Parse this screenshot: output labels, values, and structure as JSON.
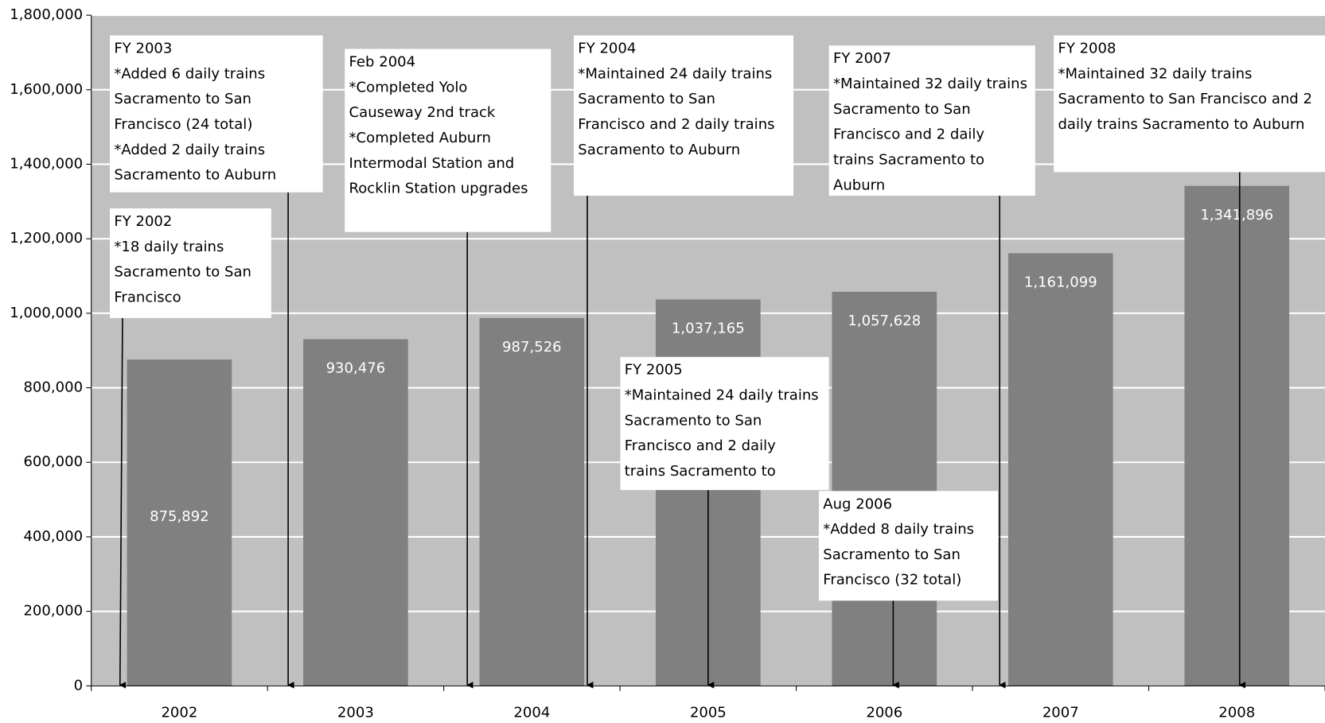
{
  "chart_data": {
    "type": "bar",
    "categories": [
      "2002",
      "2003",
      "2004",
      "2005",
      "2006",
      "2007",
      "2008"
    ],
    "values": [
      875892,
      930476,
      987526,
      1037165,
      1057628,
      1161099,
      1341896
    ],
    "value_labels": [
      "875,892",
      "930,476",
      "987,526",
      "1,037,165",
      "1,057,628",
      "1,161,099",
      "1,341,896"
    ],
    "color": "#808080",
    "background": "#c0c0c0",
    "grid": true,
    "ylim": [
      0,
      1800000
    ],
    "yticks": [
      0,
      {
        "value": 200000,
        "label": "200,000"
      },
      {
        "value": 400000,
        "label": "400,000"
      },
      {
        "value": 600000,
        "label": "600,000"
      },
      {
        "value": 800000,
        "label": "800,000"
      },
      {
        "value": 1000000,
        "label": "1,000,000"
      },
      {
        "value": 1200000,
        "label": "1,200,000"
      },
      {
        "value": 1400000,
        "label": "1,400,000"
      },
      {
        "value": 1600000,
        "label": "1,600,000"
      },
      {
        "value": 1800000,
        "label": "1,800,000"
      }
    ],
    "annotations": [
      {
        "lines": [
          "FY 2003",
          "*Added 6 daily trains",
          "Sacramento to San",
          "Francisco (24 total)",
          "*Added 2 daily trains",
          "Sacramento to Auburn"
        ]
      },
      {
        "lines": [
          "Feb 2004",
          "*Completed  Yolo",
          "Causeway 2nd track",
          "*Completed Auburn",
          "Intermodal Station and",
          "Rocklin Station upgrades"
        ]
      },
      {
        "lines": [
          "FY 2004",
          "*Maintained 24 daily trains",
          "Sacramento to San",
          "Francisco and 2 daily trains",
          "Sacramento to Auburn"
        ]
      },
      {
        "lines": [
          "FY 2007",
          "*Maintained 32 daily trains",
          "Sacramento to San",
          "Francisco and 2 daily",
          "trains Sacramento to",
          "Auburn"
        ]
      },
      {
        "lines": [
          "FY 2008",
          "*Maintained 32 daily trains",
          "Sacramento to San Francisco and 2",
          "daily trains Sacramento to Auburn"
        ]
      },
      {
        "lines": [
          "FY 2002",
          "*18 daily trains",
          "Sacramento to San",
          "Francisco"
        ]
      },
      {
        "lines": [
          "FY 2005",
          "*Maintained 24 daily trains",
          "Sacramento to San",
          "Francisco and 2 daily",
          "trains Sacramento to"
        ]
      },
      {
        "lines": [
          "Aug 2006",
          "*Added 8 daily trains",
          "Sacramento to San",
          "Francisco (32 total)"
        ]
      }
    ]
  }
}
